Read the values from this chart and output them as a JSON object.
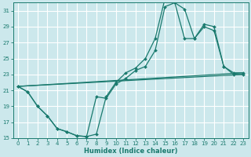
{
  "xlabel": "Humidex (Indice chaleur)",
  "bg_color": "#cce8ec",
  "grid_color": "#ffffff",
  "line_color": "#1a7a6e",
  "xlim": [
    -0.5,
    23.5
  ],
  "ylim": [
    15,
    32
  ],
  "yticks": [
    15,
    17,
    19,
    21,
    23,
    25,
    27,
    29,
    31
  ],
  "xticks": [
    0,
    1,
    2,
    3,
    4,
    5,
    6,
    7,
    8,
    9,
    10,
    11,
    12,
    13,
    14,
    15,
    16,
    17,
    18,
    19,
    20,
    21,
    22,
    23
  ],
  "curve1_x": [
    0,
    1,
    2,
    3,
    4,
    5,
    6,
    7,
    8,
    9,
    10,
    11,
    12,
    13,
    14,
    15,
    16,
    17,
    18,
    19,
    20,
    21,
    22,
    23
  ],
  "curve1_y": [
    21.5,
    20.8,
    19.0,
    17.8,
    16.2,
    15.8,
    15.3,
    15.2,
    15.5,
    20.2,
    22.0,
    23.2,
    23.8,
    25.0,
    27.5,
    32.5,
    32.0,
    31.2,
    27.5,
    29.3,
    29.0,
    24.0,
    23.2,
    23.2
  ],
  "curve2_x": [
    0,
    1,
    2,
    3,
    4,
    5,
    6,
    7,
    8,
    9,
    10,
    11,
    12,
    13,
    14,
    15,
    16,
    17,
    18,
    19,
    20,
    21,
    22,
    23
  ],
  "curve2_y": [
    21.5,
    20.8,
    19.0,
    17.8,
    16.2,
    15.8,
    15.3,
    15.2,
    20.2,
    20.0,
    21.8,
    22.5,
    23.5,
    24.0,
    26.0,
    31.5,
    32.0,
    27.5,
    27.5,
    29.0,
    28.5,
    24.0,
    23.0,
    23.0
  ],
  "line1_x": [
    0,
    23
  ],
  "line1_y": [
    21.5,
    23.2
  ],
  "line2_x": [
    0,
    23
  ],
  "line2_y": [
    21.5,
    23.0
  ],
  "tick_fontsize": 5,
  "xlabel_fontsize": 6
}
